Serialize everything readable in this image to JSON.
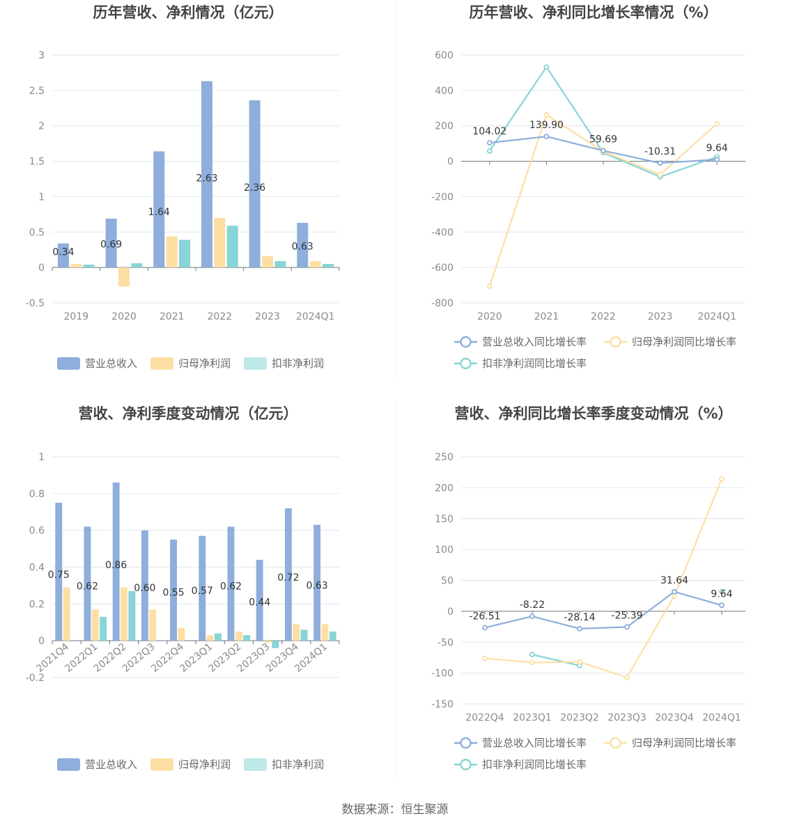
{
  "source_text": "数据来源：恒生聚源",
  "colors": {
    "revenue": "#8eaedb",
    "net_profit": "#fddfa4",
    "deducted": "#88d4d6"
  },
  "chart_data": [
    {
      "type": "bar",
      "title": "历年营收、净利情况（亿元）",
      "categories": [
        "2019",
        "2020",
        "2021",
        "2022",
        "2023",
        "2024Q1"
      ],
      "ylim": [
        -0.5,
        3
      ],
      "yticks": [
        3,
        2.5,
        2,
        1.5,
        1,
        0.5,
        0,
        -0.5
      ],
      "ytick_labels": [
        "3",
        "2.5",
        "2",
        "1.5",
        "1",
        "0.5",
        "0",
        "-0.5"
      ],
      "grid": true,
      "legend_position": "bottom",
      "series": [
        {
          "name": "营业总收入",
          "color": "#8eaedb",
          "values": [
            0.34,
            0.69,
            1.64,
            2.63,
            2.36,
            0.63
          ],
          "labels": [
            "0.34",
            "0.69",
            "1.64",
            "2.63",
            "2.36",
            "0.63"
          ]
        },
        {
          "name": "归母净利润",
          "color": "#fddfa4",
          "values": [
            0.05,
            -0.27,
            0.44,
            0.7,
            0.16,
            0.09
          ]
        },
        {
          "name": "扣非净利润",
          "color": "#bfe8e9",
          "bar_color": "#88d4d6",
          "values": [
            0.04,
            0.06,
            0.39,
            0.59,
            0.09,
            0.05
          ]
        }
      ]
    },
    {
      "type": "line",
      "title": "历年营收、净利同比增长率情况（%）",
      "categories": [
        "2020",
        "2021",
        "2022",
        "2023",
        "2024Q1"
      ],
      "ylim": [
        -800,
        600
      ],
      "yticks": [
        600,
        400,
        200,
        0,
        -200,
        -400,
        -600,
        -800
      ],
      "ytick_labels": [
        "600",
        "400",
        "200",
        "0",
        "-200",
        "-400",
        "-600",
        "-800"
      ],
      "grid": true,
      "legend_position": "bottom",
      "series": [
        {
          "name": "营业总收入同比增长率",
          "color": "#8eaedb",
          "values": [
            104.02,
            139.9,
            59.69,
            -10.31,
            9.64
          ],
          "labels": [
            "104.02",
            "139.90",
            "59.69",
            "-10.31",
            "9.64"
          ]
        },
        {
          "name": "归母净利润同比增长率",
          "color": "#fddfa4",
          "values": [
            -705,
            262,
            55,
            -75,
            212
          ]
        },
        {
          "name": "扣非净利润同比增长率",
          "color": "#88d4d6",
          "values": [
            58,
            532,
            48,
            -88,
            25
          ]
        }
      ]
    },
    {
      "type": "bar",
      "title": "营收、净利季度变动情况（亿元）",
      "categories": [
        "2021Q4",
        "2022Q1",
        "2022Q2",
        "2022Q3",
        "2022Q4",
        "2023Q1",
        "2023Q2",
        "2023Q3",
        "2023Q4",
        "2024Q1"
      ],
      "ylim": [
        -0.2,
        1
      ],
      "yticks": [
        1,
        0.8,
        0.6,
        0.4,
        0.2,
        0,
        -0.2
      ],
      "ytick_labels": [
        "1",
        "0.8",
        "0.6",
        "0.4",
        "0.2",
        "0",
        "-0.2"
      ],
      "grid": true,
      "legend_position": "bottom",
      "series": [
        {
          "name": "营业总收入",
          "color": "#8eaedb",
          "values": [
            0.75,
            0.62,
            0.86,
            0.6,
            0.55,
            0.57,
            0.62,
            0.44,
            0.72,
            0.63
          ],
          "labels": [
            "0.75",
            "0.62",
            "0.86",
            "0.60",
            "0.55",
            "0.57",
            "0.62",
            "0.44",
            "0.72",
            "0.63"
          ]
        },
        {
          "name": "归母净利润",
          "color": "#fddfa4",
          "values": [
            0.29,
            0.17,
            0.29,
            0.17,
            0.07,
            0.03,
            0.05,
            -0.01,
            0.09,
            0.09
          ]
        },
        {
          "name": "扣非净利润",
          "color": "#bfe8e9",
          "bar_color": "#88d4d6",
          "values": [
            0,
            0.13,
            0.27,
            0,
            0,
            0.04,
            0.03,
            -0.04,
            0.06,
            0.05
          ]
        }
      ]
    },
    {
      "type": "line",
      "title": "营收、净利同比增长率季度变动情况（%）",
      "categories": [
        "2022Q4",
        "2023Q1",
        "2023Q2",
        "2023Q3",
        "2023Q4",
        "2024Q1"
      ],
      "ylim": [
        -150,
        250
      ],
      "yticks": [
        250,
        200,
        150,
        100,
        50,
        0,
        -50,
        -100,
        -150
      ],
      "ytick_labels": [
        "250",
        "200",
        "150",
        "100",
        "50",
        "0",
        "-50",
        "-100",
        "-150"
      ],
      "grid": true,
      "legend_position": "bottom",
      "series": [
        {
          "name": "营业总收入同比增长率",
          "color": "#8eaedb",
          "values": [
            -26.51,
            -8.22,
            -28.14,
            -25.39,
            31.64,
            9.64
          ],
          "labels": [
            "-26.51",
            "-8.22",
            "-28.14",
            "-25.39",
            "31.64",
            "9.64"
          ]
        },
        {
          "name": "归母净利润同比增长率",
          "color": "#fddfa4",
          "values": [
            -76,
            -83,
            -82,
            -107,
            25,
            214
          ]
        },
        {
          "name": "扣非净利润同比增长率",
          "color": "#88d4d6",
          "values": [
            null,
            -70,
            -88,
            null,
            null,
            32
          ]
        }
      ]
    }
  ]
}
